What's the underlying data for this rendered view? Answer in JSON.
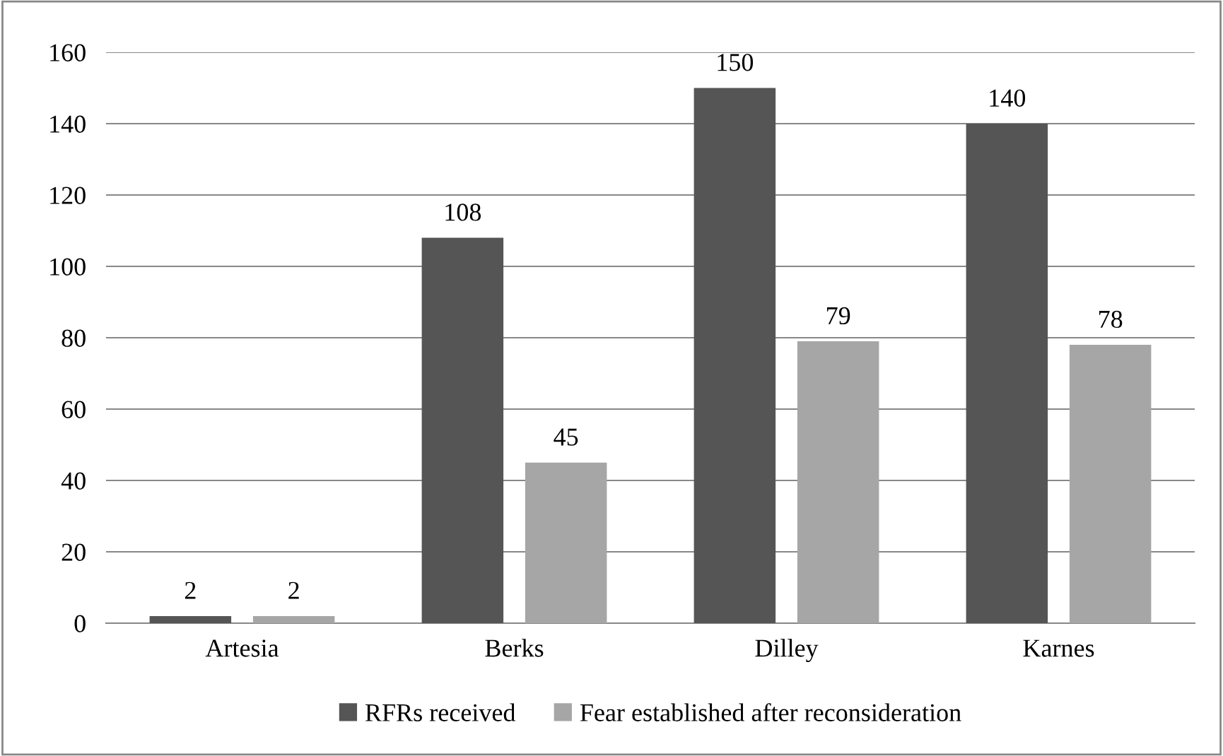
{
  "chart_data": {
    "type": "bar",
    "categories": [
      "Artesia",
      "Berks",
      "Dilley",
      "Karnes"
    ],
    "series": [
      {
        "name": "RFRs received",
        "color": "#555555",
        "values": [
          2,
          108,
          150,
          140
        ]
      },
      {
        "name": "Fear established after reconsideration",
        "color": "#a6a6a6",
        "values": [
          2,
          45,
          79,
          78
        ]
      }
    ],
    "ylim": [
      0,
      160
    ],
    "yticks": [
      0,
      20,
      40,
      60,
      80,
      100,
      120,
      140,
      160
    ],
    "grid": "y",
    "legend": "bottom",
    "data_labels": true
  }
}
